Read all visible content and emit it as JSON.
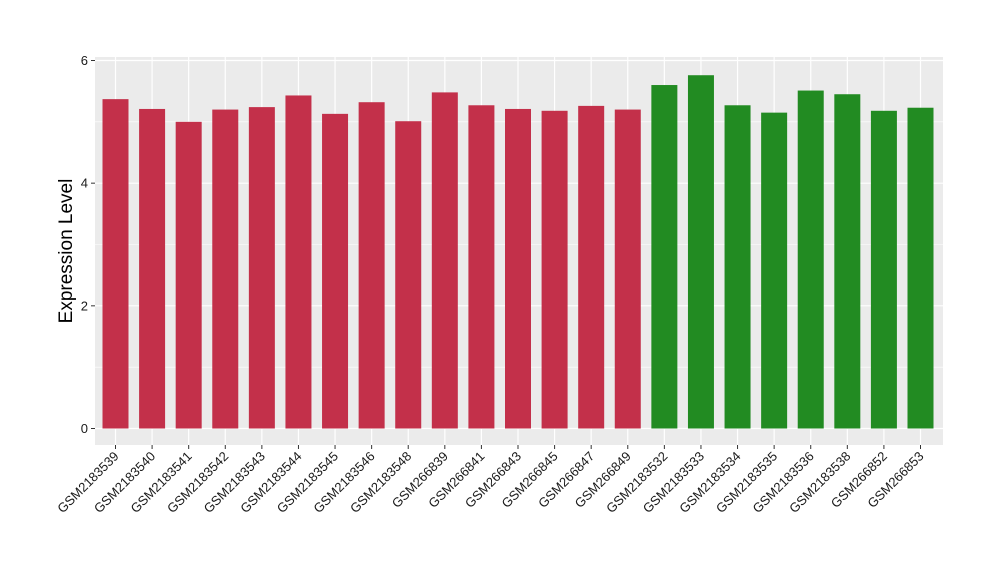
{
  "chart_data": {
    "type": "bar",
    "title": "",
    "xlabel": "",
    "ylabel": "Expression Level",
    "ylim": [
      0,
      6
    ],
    "y_ticks": [
      0,
      2,
      4,
      6
    ],
    "grid": true,
    "legend": "none",
    "panel_background": "#ebebeb",
    "grid_color": "#ffffff",
    "categories": [
      "GSM2183539",
      "GSM2183540",
      "GSM2183541",
      "GSM2183542",
      "GSM2183543",
      "GSM2183544",
      "GSM2183545",
      "GSM2183546",
      "GSM2183548",
      "GSM266839",
      "GSM266841",
      "GSM266843",
      "GSM266845",
      "GSM266847",
      "GSM266849",
      "GSM2183532",
      "GSM2183533",
      "GSM2183534",
      "GSM2183535",
      "GSM2183536",
      "GSM2183538",
      "GSM266852",
      "GSM266853"
    ],
    "values": [
      5.37,
      5.21,
      5.0,
      5.2,
      5.24,
      5.43,
      5.13,
      5.32,
      5.01,
      5.48,
      5.27,
      5.21,
      5.18,
      5.26,
      5.2,
      5.6,
      5.76,
      5.27,
      5.15,
      5.51,
      5.45,
      5.18,
      5.23
    ],
    "colors": [
      "#c3304a",
      "#c3304a",
      "#c3304a",
      "#c3304a",
      "#c3304a",
      "#c3304a",
      "#c3304a",
      "#c3304a",
      "#c3304a",
      "#c3304a",
      "#c3304a",
      "#c3304a",
      "#c3304a",
      "#c3304a",
      "#c3304a",
      "#228b22",
      "#228b22",
      "#228b22",
      "#228b22",
      "#228b22",
      "#228b22",
      "#228b22",
      "#228b22"
    ]
  }
}
